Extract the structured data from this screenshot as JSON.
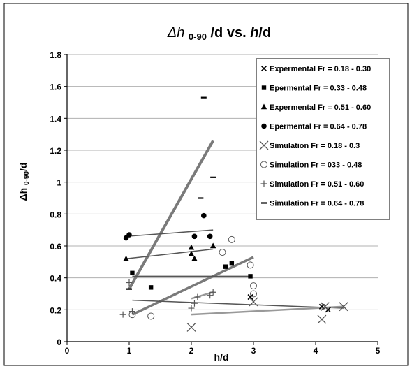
{
  "chart_data": {
    "type": "scatter",
    "title_main": "Δh ",
    "title_sub": "0-90",
    "title_rest": " /d  vs. ",
    "title_h": "h",
    "title_end": "/d",
    "xlabel": "h/d",
    "ylabel_main": "Δh ",
    "ylabel_sub": "0-90",
    "ylabel_end": "/d",
    "xlim": [
      0,
      5
    ],
    "ylim": [
      0,
      1.8
    ],
    "x_ticks": [
      0,
      1,
      2,
      3,
      4,
      5
    ],
    "y_ticks": [
      0,
      0.2,
      0.4,
      0.6,
      0.8,
      1,
      1.2,
      1.4,
      1.6,
      1.8
    ],
    "y_tick_labels": [
      "0",
      "0.2",
      "0.4",
      "0.6",
      "0.8",
      "1",
      "1.2",
      "1.4",
      "1.6",
      "1.8"
    ],
    "grid": "horizontal",
    "legend_position": "top-right",
    "series": [
      {
        "name": "Expermental  Fr = 0.18 - 0.30",
        "marker": "x-small",
        "color": "#000000",
        "points": [
          [
            2.95,
            0.28
          ],
          [
            4.1,
            0.22
          ],
          [
            4.2,
            0.2
          ]
        ]
      },
      {
        "name": "Epermental  Fr = 0.33 - 0.48",
        "marker": "square",
        "color": "#000000",
        "points": [
          [
            1.05,
            0.43
          ],
          [
            1.35,
            0.34
          ],
          [
            2.55,
            0.47
          ],
          [
            2.65,
            0.49
          ],
          [
            2.95,
            0.41
          ]
        ]
      },
      {
        "name": "Expermental  Fr = 0.51 - 0.60",
        "marker": "triangle",
        "color": "#000000",
        "points": [
          [
            0.95,
            0.52
          ],
          [
            2.0,
            0.59
          ],
          [
            2.0,
            0.55
          ],
          [
            2.05,
            0.52
          ],
          [
            2.35,
            0.6
          ]
        ]
      },
      {
        "name": "Epermental  Fr = 0.64 - 0.78",
        "marker": "circle",
        "color": "#000000",
        "points": [
          [
            0.95,
            0.65
          ],
          [
            1.0,
            0.67
          ],
          [
            2.05,
            0.66
          ],
          [
            2.2,
            0.79
          ],
          [
            2.3,
            0.66
          ]
        ]
      },
      {
        "name": "Simulation  Fr = 0.18 - 0.3",
        "marker": "x-large",
        "color": "#555555",
        "points": [
          [
            2.0,
            0.09
          ],
          [
            3.0,
            0.25
          ],
          [
            4.1,
            0.14
          ],
          [
            4.15,
            0.22
          ],
          [
            4.45,
            0.22
          ]
        ]
      },
      {
        "name": "Simulation  Fr = 033 - 0.48",
        "marker": "circle-open",
        "color": "#555555",
        "points": [
          [
            1.05,
            0.17
          ],
          [
            1.35,
            0.16
          ],
          [
            2.5,
            0.56
          ],
          [
            2.65,
            0.64
          ],
          [
            2.95,
            0.48
          ],
          [
            3.0,
            0.35
          ],
          [
            3.0,
            0.3
          ]
        ]
      },
      {
        "name": "Simulation  Fr = 0.51 - 0.60",
        "marker": "plus",
        "color": "#555555",
        "points": [
          [
            0.9,
            0.17
          ],
          [
            1.0,
            0.37
          ],
          [
            1.05,
            0.19
          ],
          [
            2.0,
            0.21
          ],
          [
            2.05,
            0.24
          ],
          [
            2.1,
            0.28
          ],
          [
            2.3,
            0.29
          ],
          [
            2.35,
            0.31
          ]
        ]
      },
      {
        "name": "Simulation  Fr = 0.64 - 0.78",
        "marker": "dash",
        "color": "#000000",
        "points": [
          [
            1.0,
            0.33
          ],
          [
            2.15,
            0.9
          ],
          [
            2.2,
            1.53
          ],
          [
            2.35,
            1.03
          ]
        ]
      }
    ],
    "trend_lines": [
      {
        "color": "#7a7a7a",
        "width": 4,
        "from": [
          1.0,
          0.33
        ],
        "to": [
          2.35,
          1.26
        ]
      },
      {
        "color": "#7a7a7a",
        "width": 3.5,
        "from": [
          1.05,
          0.17
        ],
        "to": [
          3.0,
          0.53
        ]
      },
      {
        "color": "#555555",
        "width": 1.5,
        "from": [
          0.95,
          0.66
        ],
        "to": [
          2.35,
          0.7
        ]
      },
      {
        "color": "#555555",
        "width": 1.5,
        "from": [
          0.95,
          0.52
        ],
        "to": [
          2.35,
          0.58
        ]
      },
      {
        "color": "#555555",
        "width": 1.5,
        "from": [
          1.05,
          0.41
        ],
        "to": [
          2.95,
          0.41
        ]
      },
      {
        "color": "#555555",
        "width": 1.5,
        "from": [
          1.05,
          0.26
        ],
        "to": [
          4.45,
          0.21
        ]
      },
      {
        "color": "#999999",
        "width": 2.5,
        "from": [
          2.0,
          0.17
        ],
        "to": [
          4.45,
          0.22
        ]
      },
      {
        "color": "#999999",
        "width": 2.5,
        "from": [
          2.0,
          0.27
        ],
        "to": [
          2.35,
          0.31
        ]
      }
    ]
  }
}
